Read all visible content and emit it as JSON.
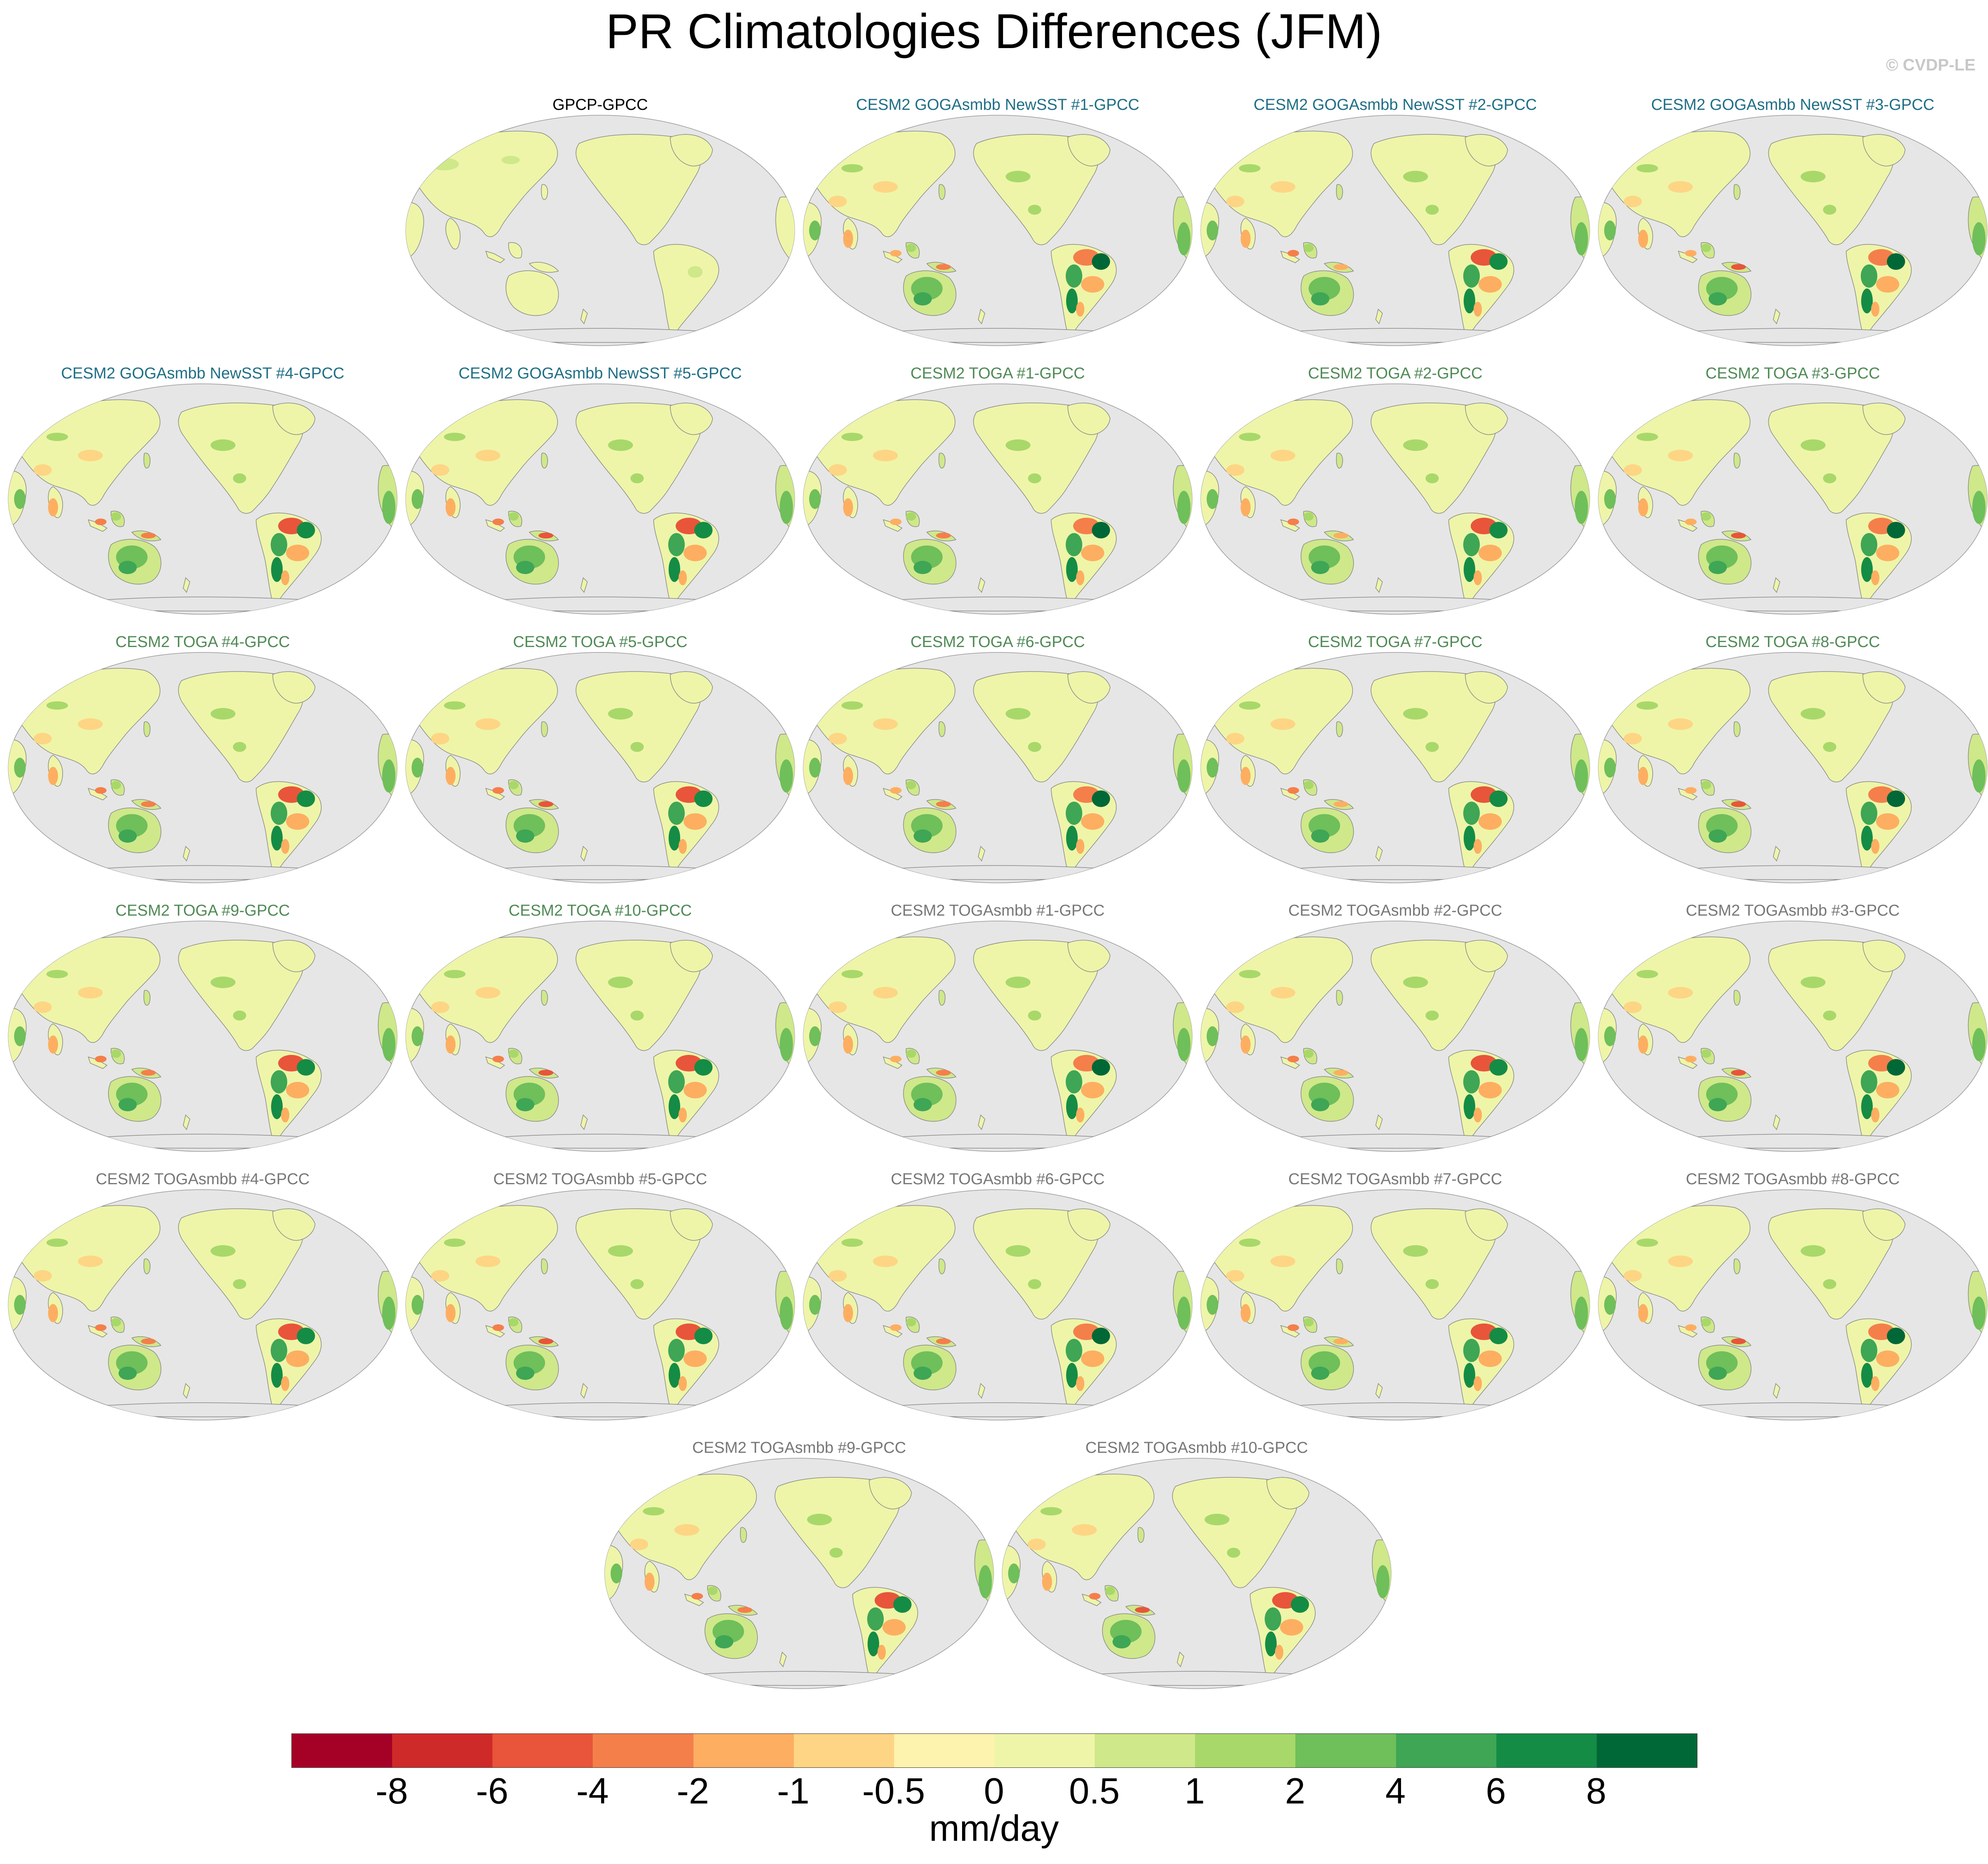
{
  "title": "PR Climatologies Differences (JFM)",
  "watermark": "© CVDP-LE",
  "colors": {
    "ocean": "#e6e6e6",
    "coast": "#8a8a8a",
    "title_obs": "#000000",
    "title_goga": "#1f6e86",
    "title_toga": "#4f8a55",
    "title_togasmbb": "#777777"
  },
  "panels": [
    {
      "title": "GPCP-GPCC",
      "group": "obs"
    },
    {
      "title": "CESM2 GOGAsmbb NewSST #1-GPCC",
      "group": "goga"
    },
    {
      "title": "CESM2 GOGAsmbb NewSST #2-GPCC",
      "group": "goga"
    },
    {
      "title": "CESM2 GOGAsmbb NewSST #3-GPCC",
      "group": "goga"
    },
    {
      "title": "CESM2 GOGAsmbb NewSST #4-GPCC",
      "group": "goga"
    },
    {
      "title": "CESM2 GOGAsmbb NewSST #5-GPCC",
      "group": "goga"
    },
    {
      "title": "CESM2 TOGA #1-GPCC",
      "group": "toga"
    },
    {
      "title": "CESM2 TOGA #2-GPCC",
      "group": "toga"
    },
    {
      "title": "CESM2 TOGA #3-GPCC",
      "group": "toga"
    },
    {
      "title": "CESM2 TOGA #4-GPCC",
      "group": "toga"
    },
    {
      "title": "CESM2 TOGA #5-GPCC",
      "group": "toga"
    },
    {
      "title": "CESM2 TOGA #6-GPCC",
      "group": "toga"
    },
    {
      "title": "CESM2 TOGA #7-GPCC",
      "group": "toga"
    },
    {
      "title": "CESM2 TOGA #8-GPCC",
      "group": "toga"
    },
    {
      "title": "CESM2 TOGA #9-GPCC",
      "group": "toga"
    },
    {
      "title": "CESM2 TOGA #10-GPCC",
      "group": "toga"
    },
    {
      "title": "CESM2 TOGAsmbb #1-GPCC",
      "group": "togasmbb"
    },
    {
      "title": "CESM2 TOGAsmbb #2-GPCC",
      "group": "togasmbb"
    },
    {
      "title": "CESM2 TOGAsmbb #3-GPCC",
      "group": "togasmbb"
    },
    {
      "title": "CESM2 TOGAsmbb #4-GPCC",
      "group": "togasmbb"
    },
    {
      "title": "CESM2 TOGAsmbb #5-GPCC",
      "group": "togasmbb"
    },
    {
      "title": "CESM2 TOGAsmbb #6-GPCC",
      "group": "togasmbb"
    },
    {
      "title": "CESM2 TOGAsmbb #7-GPCC",
      "group": "togasmbb"
    },
    {
      "title": "CESM2 TOGAsmbb #8-GPCC",
      "group": "togasmbb"
    },
    {
      "title": "CESM2 TOGAsmbb #9-GPCC",
      "group": "togasmbb"
    },
    {
      "title": "CESM2 TOGAsmbb #10-GPCC",
      "group": "togasmbb"
    }
  ],
  "chart_data": {
    "type": "heatmap",
    "title": "PR Climatologies Differences (JFM)",
    "projection": "global map, Pacific-centered",
    "colorbar": {
      "units": "mm/day",
      "tick_labels": [
        "-8",
        "-6",
        "-4",
        "-2",
        "-1",
        "-0.5",
        "0",
        "0.5",
        "1",
        "2",
        "4",
        "6",
        "8"
      ],
      "colors": [
        "#a50026",
        "#cf2a2a",
        "#e8553a",
        "#f47f4b",
        "#fdae61",
        "#fdd584",
        "#fdf2ae",
        "#eef5a8",
        "#cfe88a",
        "#a8d86a",
        "#6fbf5a",
        "#3ea655",
        "#148c45",
        "#006837"
      ]
    }
  }
}
